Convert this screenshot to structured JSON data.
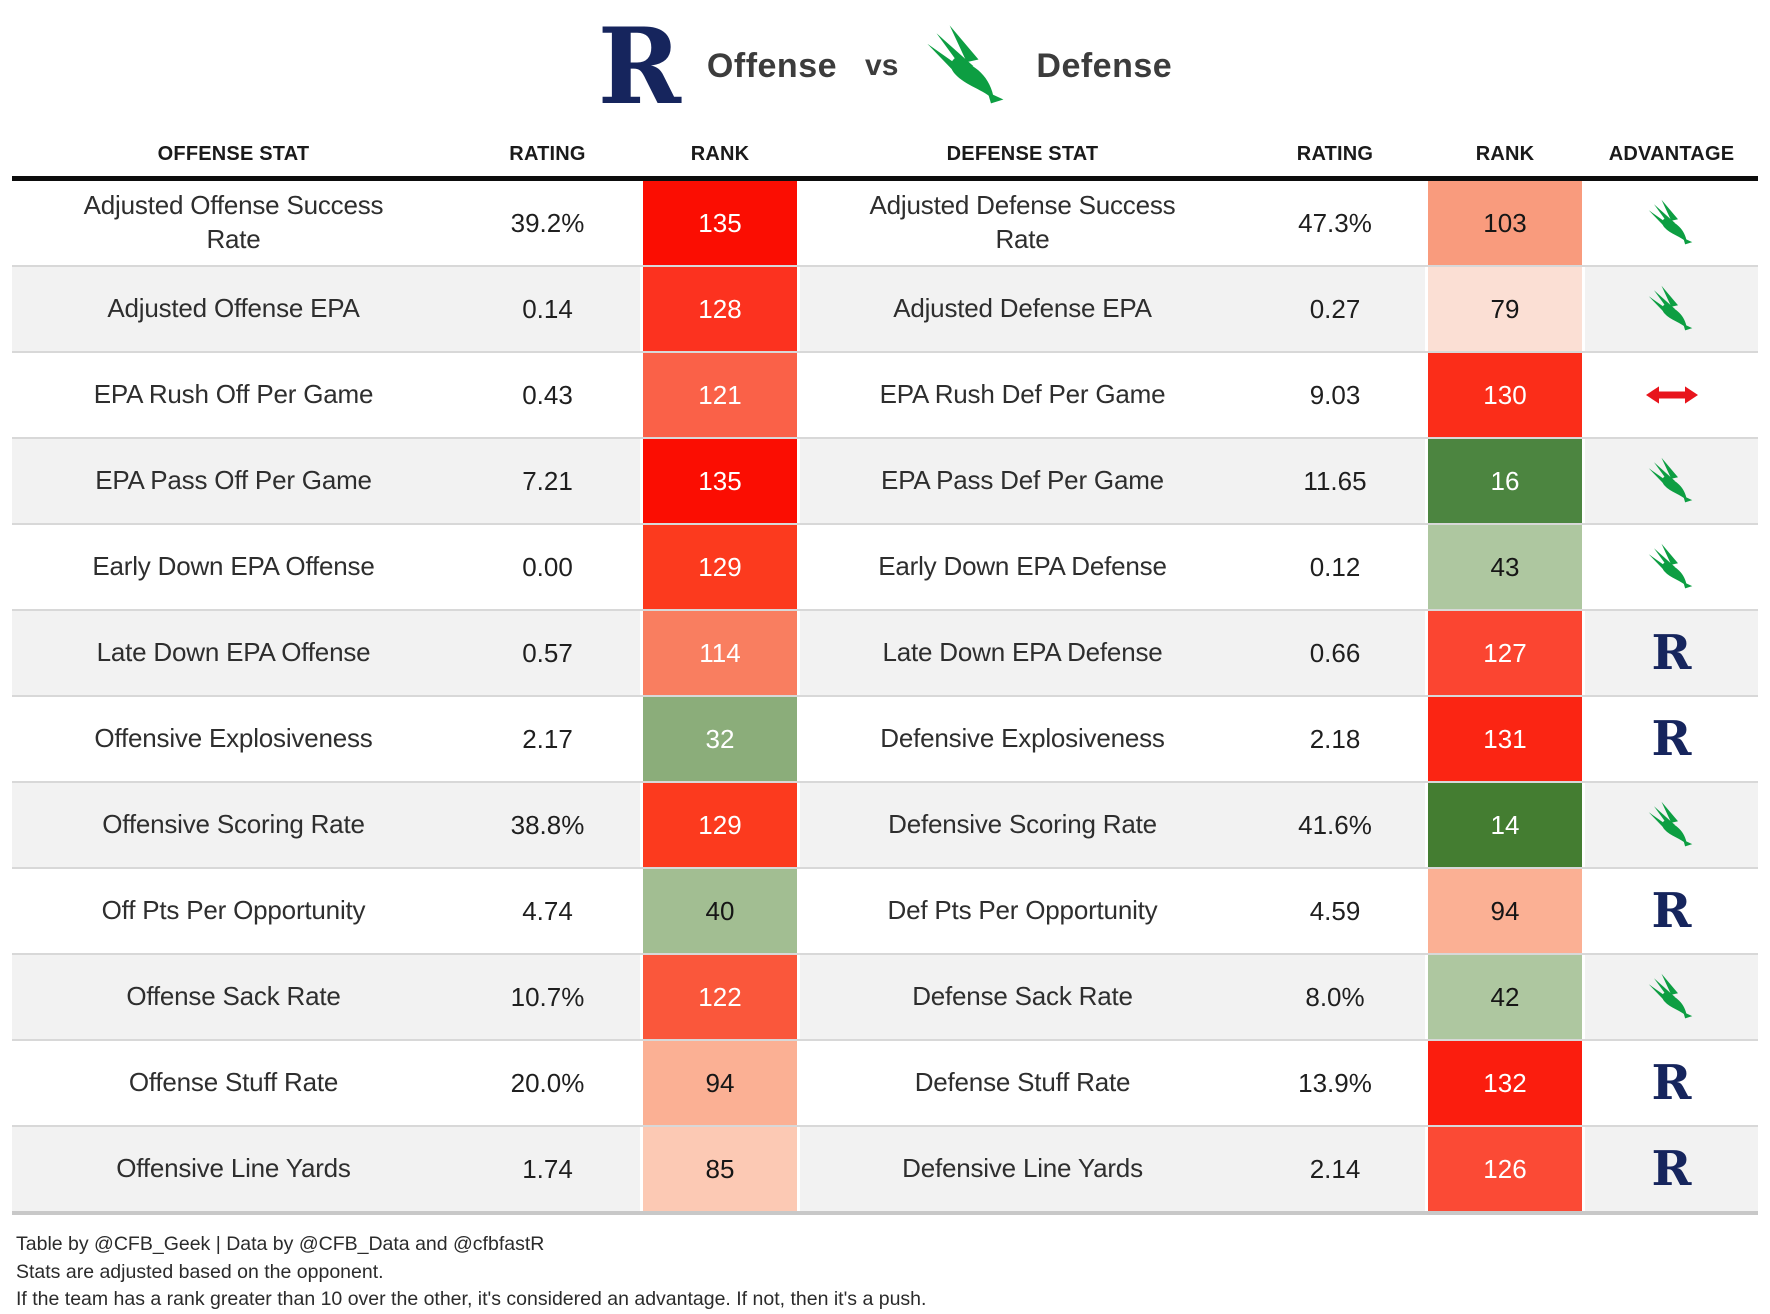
{
  "header": {
    "offense_label": "Offense",
    "vs_label": "vs",
    "defense_label": "Defense",
    "left_logo": "rice-r-logo",
    "right_logo": "north-texas-eagle-logo"
  },
  "columns": [
    "OFFENSE STAT",
    "RATING",
    "RANK",
    "DEFENSE STAT",
    "RATING",
    "RANK",
    "ADVANTAGE"
  ],
  "colors": {
    "rice_navy": "#16255d",
    "unt_green": "#0d9e42",
    "push_red": "#e8141c",
    "header_rule": "#0d0d0d",
    "bottom_rule": "#c8c8c8",
    "row_alt_bg": "#f2f2f2",
    "row_divider": "#d8d8d8"
  },
  "chart_data": {
    "type": "table",
    "title": "Offense vs Defense",
    "columns": [
      "OFFENSE STAT",
      "RATING",
      "RANK",
      "DEFENSE STAT",
      "RATING",
      "RANK",
      "ADVANTAGE"
    ],
    "rows": [
      {
        "offense_stat": "Adjusted Offense Success Rate",
        "offense_rating": "39.2%",
        "offense_rank": "135",
        "offense_rank_bg": "#fb0d02",
        "offense_rank_text": "#ffffff",
        "defense_stat": "Adjusted Defense Success Rate",
        "defense_rating": "47.3%",
        "defense_rank": "103",
        "defense_rank_bg": "#f99b7d",
        "defense_rank_text": "#161616",
        "advantage": "north-texas"
      },
      {
        "offense_stat": "Adjusted Offense EPA",
        "offense_rating": "0.14",
        "offense_rank": "128",
        "offense_rank_bg": "#fc321f",
        "offense_rank_text": "#ffffff",
        "defense_stat": "Adjusted Defense EPA",
        "defense_rating": "0.27",
        "defense_rank": "79",
        "defense_rank_bg": "#fbdfd4",
        "defense_rank_text": "#161616",
        "advantage": "north-texas"
      },
      {
        "offense_stat": "EPA Rush Off Per Game",
        "offense_rating": "0.43",
        "offense_rank": "121",
        "offense_rank_bg": "#fa6148",
        "offense_rank_text": "#ffffff",
        "defense_stat": "EPA Rush Def Per Game",
        "defense_rating": "9.03",
        "defense_rank": "130",
        "defense_rank_bg": "#fb2d19",
        "defense_rank_text": "#ffffff",
        "advantage": "push"
      },
      {
        "offense_stat": "EPA Pass Off Per Game",
        "offense_rating": "7.21",
        "offense_rank": "135",
        "offense_rank_bg": "#fb0d02",
        "offense_rank_text": "#ffffff",
        "defense_stat": "EPA Pass Def Per Game",
        "defense_rating": "11.65",
        "defense_rank": "16",
        "defense_rank_bg": "#4c8540",
        "defense_rank_text": "#ffffff",
        "advantage": "north-texas"
      },
      {
        "offense_stat": "Early Down EPA Offense",
        "offense_rating": "0.00",
        "offense_rank": "129",
        "offense_rank_bg": "#fc3a1e",
        "offense_rank_text": "#ffffff",
        "defense_stat": "Early Down EPA Defense",
        "defense_rating": "0.12",
        "defense_rank": "43",
        "defense_rank_bg": "#aec7a0",
        "defense_rank_text": "#161616",
        "advantage": "north-texas"
      },
      {
        "offense_stat": "Late Down EPA Offense",
        "offense_rating": "0.57",
        "offense_rank": "114",
        "offense_rank_bg": "#f97e60",
        "offense_rank_text": "#ffffff",
        "defense_stat": "Late Down EPA Defense",
        "defense_rating": "0.66",
        "defense_rank": "127",
        "defense_rank_bg": "#fb4531",
        "defense_rank_text": "#ffffff",
        "advantage": "rice"
      },
      {
        "offense_stat": "Offensive Explosiveness",
        "offense_rating": "2.17",
        "offense_rank": "32",
        "offense_rank_bg": "#8bad7a",
        "offense_rank_text": "#ffffff",
        "defense_stat": "Defensive Explosiveness",
        "defense_rating": "2.18",
        "defense_rank": "131",
        "defense_rank_bg": "#fb2513",
        "defense_rank_text": "#ffffff",
        "advantage": "rice"
      },
      {
        "offense_stat": "Offensive Scoring Rate",
        "offense_rating": "38.8%",
        "offense_rank": "129",
        "offense_rank_bg": "#fc3a1e",
        "offense_rank_text": "#ffffff",
        "defense_stat": "Defensive Scoring Rate",
        "defense_rating": "41.6%",
        "defense_rank": "14",
        "defense_rank_bg": "#447d31",
        "defense_rank_text": "#ffffff",
        "advantage": "north-texas"
      },
      {
        "offense_stat": "Off Pts Per Opportunity",
        "offense_rating": "4.74",
        "offense_rank": "40",
        "offense_rank_bg": "#a2be92",
        "offense_rank_text": "#161616",
        "defense_stat": "Def Pts Per Opportunity",
        "defense_rating": "4.59",
        "defense_rank": "94",
        "defense_rank_bg": "#fbb094",
        "defense_rank_text": "#161616",
        "advantage": "rice"
      },
      {
        "offense_stat": "Offense Sack Rate",
        "offense_rating": "10.7%",
        "offense_rank": "122",
        "offense_rank_bg": "#fa573b",
        "offense_rank_text": "#ffffff",
        "defense_stat": "Defense Sack Rate",
        "defense_rating": "8.0%",
        "defense_rank": "42",
        "defense_rank_bg": "#aec7a0",
        "defense_rank_text": "#161616",
        "advantage": "north-texas"
      },
      {
        "offense_stat": "Offense Stuff Rate",
        "offense_rating": "20.0%",
        "offense_rank": "94",
        "offense_rank_bg": "#fbb094",
        "offense_rank_text": "#161616",
        "defense_stat": "Defense Stuff Rate",
        "defense_rating": "13.9%",
        "defense_rank": "132",
        "defense_rank_bg": "#fb1d0e",
        "defense_rank_text": "#ffffff",
        "advantage": "rice"
      },
      {
        "offense_stat": "Offensive Line Yards",
        "offense_rating": "1.74",
        "offense_rank": "85",
        "offense_rank_bg": "#fcc9b4",
        "offense_rank_text": "#161616",
        "defense_stat": "Defensive Line Yards",
        "defense_rating": "2.14",
        "defense_rank": "126",
        "defense_rank_bg": "#fb4a35",
        "defense_rank_text": "#ffffff",
        "advantage": "rice"
      }
    ]
  },
  "footer": {
    "lines": [
      "Table by @CFB_Geek | Data by @CFB_Data and @cfbfastR",
      "Stats are adjusted based on the opponent.",
      "If the team has a rank greater than 10 over the other, it's considered an advantage. If not, then it's a push."
    ]
  }
}
